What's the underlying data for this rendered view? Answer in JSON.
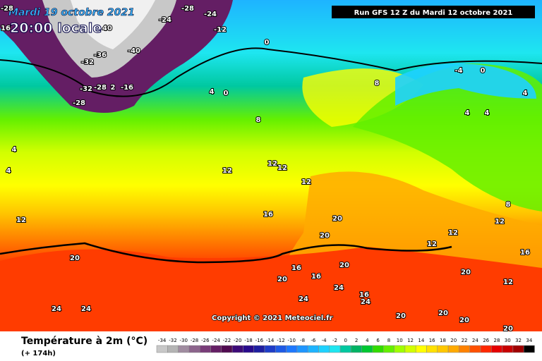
{
  "header": {
    "date": "Mardi 19 octobre 2021",
    "time": "20:00 locale",
    "run": "Run GFS 12 Z du Mardi 12 octobre 2021"
  },
  "copyright": "Copyright © 2021 Meteociel.fr",
  "footer": {
    "title": "Température à 2m (°C)",
    "lead": "(+ 174h)"
  },
  "legend": {
    "labels": [
      -34,
      -32,
      -30,
      -28,
      -26,
      -24,
      -22,
      -20,
      -18,
      -16,
      -14,
      -12,
      -10,
      -8,
      -6,
      -4,
      -2,
      0,
      2,
      4,
      6,
      8,
      10,
      12,
      14,
      16,
      18,
      20,
      22,
      24,
      26,
      28,
      30,
      32,
      34
    ],
    "colors": [
      "#c8c8c8",
      "#b4b4b4",
      "#a08ca0",
      "#8c648c",
      "#783c78",
      "#641e64",
      "#500a50",
      "#3c0a78",
      "#280a8c",
      "#1e1ea0",
      "#1e3cc8",
      "#1e5ae6",
      "#1e78ff",
      "#1e96ff",
      "#1eb4ff",
      "#1ed2ff",
      "#1ee6f0",
      "#00c8a0",
      "#00b464",
      "#00c832",
      "#32dc00",
      "#64f000",
      "#a0ff00",
      "#d2ff00",
      "#ffff00",
      "#ffe100",
      "#ffc800",
      "#ffaa00",
      "#ff8200",
      "#ff5000",
      "#ff2800",
      "#e60000",
      "#c80000",
      "#a00000",
      "#000000"
    ]
  },
  "map_labels": [
    -28,
    -28,
    -24,
    -24,
    -12,
    16,
    40,
    -36,
    -40,
    -32,
    -32,
    -28,
    2,
    -16,
    -28,
    0,
    4,
    0,
    8,
    -4,
    0,
    4,
    4,
    4,
    8,
    12,
    12,
    12,
    12,
    16,
    12,
    20,
    20,
    20,
    20,
    16,
    16,
    20,
    24,
    24,
    24,
    24,
    16,
    24,
    20,
    20,
    20,
    20,
    20,
    12,
    16,
    12,
    12,
    12,
    8,
    4,
    4
  ]
}
